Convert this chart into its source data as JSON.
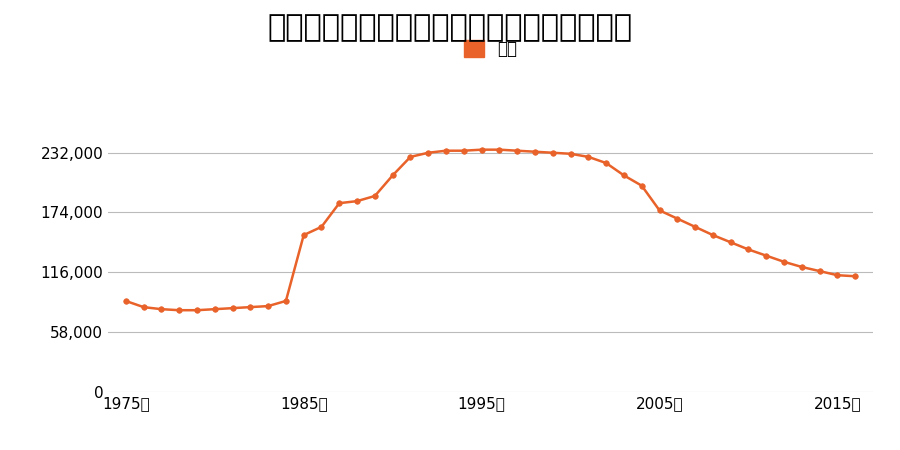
{
  "title": "徳島県徳島市伊賀町２丁目２番３の地価推移",
  "legend_label": "価格",
  "line_color": "#E8622A",
  "marker_color": "#E8622A",
  "legend_color": "#E8622A",
  "background_color": "#ffffff",
  "yticks": [
    0,
    58000,
    116000,
    174000,
    232000
  ],
  "ytick_labels": [
    "0",
    "58,000",
    "116,000",
    "174,000",
    "232,000"
  ],
  "xtick_years": [
    1975,
    1985,
    1995,
    2005,
    2015
  ],
  "ylim": [
    0,
    258000
  ],
  "xlim": [
    1974,
    2017
  ],
  "years": [
    1975,
    1976,
    1977,
    1978,
    1979,
    1980,
    1981,
    1982,
    1983,
    1984,
    1985,
    1986,
    1987,
    1988,
    1989,
    1990,
    1991,
    1992,
    1993,
    1994,
    1995,
    1996,
    1997,
    1998,
    1999,
    2000,
    2001,
    2002,
    2003,
    2004,
    2005,
    2006,
    2007,
    2008,
    2009,
    2010,
    2011,
    2012,
    2013,
    2014,
    2015,
    2016
  ],
  "values": [
    88000,
    82000,
    80000,
    79000,
    79000,
    80000,
    81000,
    82000,
    83000,
    88000,
    152000,
    160000,
    183000,
    185000,
    190000,
    210000,
    228000,
    232000,
    234000,
    234000,
    235000,
    235000,
    234000,
    233000,
    232000,
    231000,
    228000,
    222000,
    210000,
    200000,
    176000,
    168000,
    160000,
    152000,
    145000,
    138000,
    132000,
    126000,
    121000,
    117000,
    113000,
    112000
  ]
}
